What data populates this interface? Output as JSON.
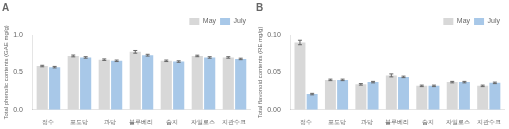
{
  "chart_data": [
    {
      "type": "bar",
      "title": "A",
      "y_label": "Total phenolic contents (GAE mg/g)",
      "categories": [
        "정수",
        "포도당",
        "과당",
        "블루베리",
        "숨지",
        "자일로스",
        "지관수크"
      ],
      "series": [
        {
          "name": "May",
          "color": "#d8d8d8",
          "values": [
            0.585,
            0.72,
            0.67,
            0.775,
            0.655,
            0.72,
            0.7
          ],
          "errors": [
            0.01,
            0.012,
            0.01,
            0.018,
            0.01,
            0.01,
            0.01
          ]
        },
        {
          "name": "July",
          "color": "#a8c8e8",
          "values": [
            0.57,
            0.7,
            0.655,
            0.73,
            0.645,
            0.7,
            0.68
          ],
          "errors": [
            0.01,
            0.01,
            0.01,
            0.012,
            0.01,
            0.01,
            0.01
          ]
        }
      ],
      "ylim": [
        0.0,
        1.0
      ],
      "yticks": [
        {
          "value": 0.0,
          "label": "0.0"
        },
        0.5,
        {
          "value": 1.0,
          "label": "1.0"
        }
      ],
      "grid": false,
      "legend": "upper right"
    },
    {
      "type": "bar",
      "title": "B",
      "y_label": "Total flavonoid contents (RE mg/g)",
      "categories": [
        "정수",
        "포도당",
        "과당",
        "블루베리",
        "숨지",
        "자일로스",
        "지관수크"
      ],
      "series": [
        {
          "name": "May",
          "color": "#d8d8d8",
          "values": [
            0.09,
            0.04,
            0.034,
            0.046,
            0.032,
            0.037,
            0.032
          ],
          "errors": [
            0.003,
            0.001,
            0.001,
            0.002,
            0.001,
            0.001,
            0.001
          ]
        },
        {
          "name": "July",
          "color": "#a8c8e8",
          "values": [
            0.021,
            0.04,
            0.037,
            0.044,
            0.032,
            0.037,
            0.036
          ],
          "errors": [
            0.001,
            0.001,
            0.001,
            0.001,
            0.001,
            0.001,
            0.001
          ]
        }
      ],
      "ylim": [
        0.0,
        0.1
      ],
      "yticks": [
        {
          "value": 0.0,
          "label": "0.00"
        },
        0.05,
        {
          "value": 0.1,
          "label": "0.10"
        }
      ],
      "grid": false,
      "legend": "upper right"
    }
  ]
}
